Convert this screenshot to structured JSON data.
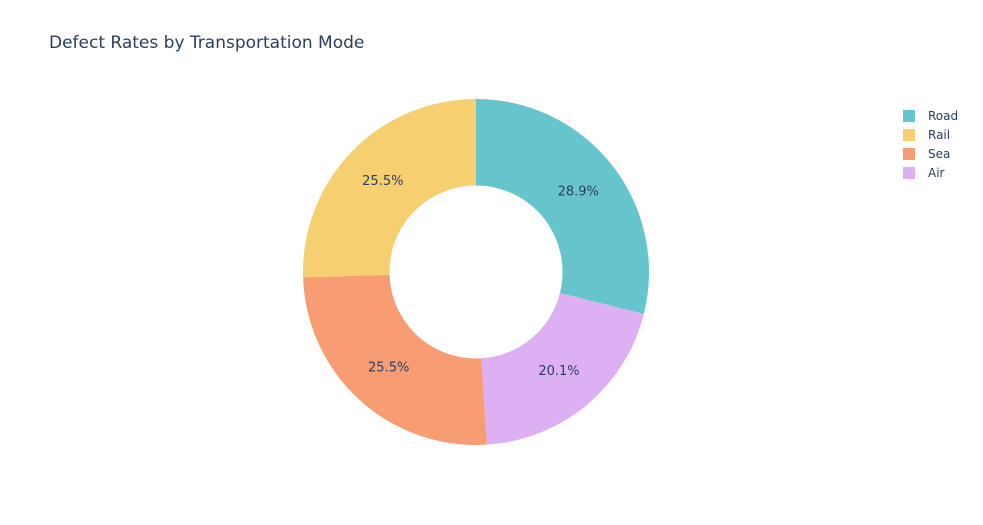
{
  "chart_data": {
    "type": "pie",
    "title": "Defect Rates by Transportation Mode",
    "hole": 0.5,
    "categories": [
      "Road",
      "Air",
      "Sea",
      "Rail"
    ],
    "values": [
      28.9,
      20.1,
      25.5,
      25.5
    ],
    "slice_labels": [
      "28.9%",
      "20.1%",
      "25.5%",
      "25.5%"
    ],
    "colors": [
      "#66c5cc",
      "#dcb0f2",
      "#f89c74",
      "#f6cf71"
    ],
    "legend": {
      "position": "top-right",
      "entries": [
        {
          "label": "Road",
          "color": "#66c5cc"
        },
        {
          "label": "Rail",
          "color": "#f6cf71"
        },
        {
          "label": "Sea",
          "color": "#f89c74"
        },
        {
          "label": "Air",
          "color": "#dcb0f2"
        }
      ]
    }
  }
}
